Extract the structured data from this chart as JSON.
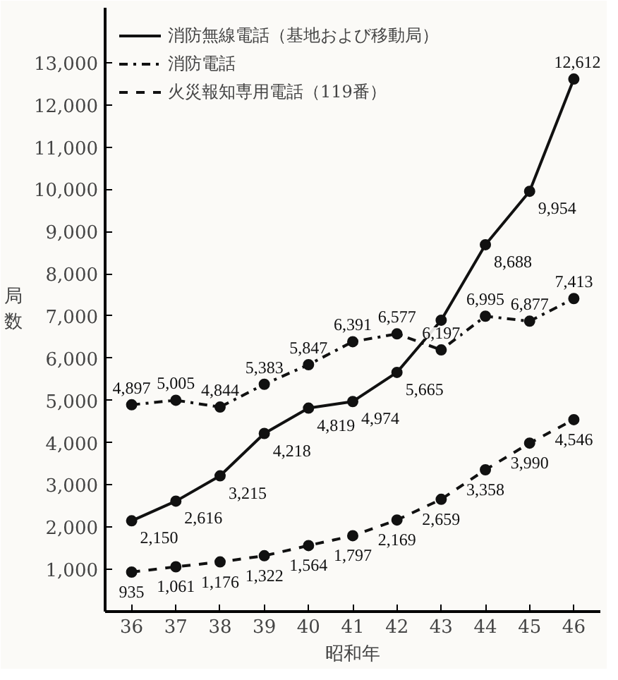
{
  "chart_data": {
    "type": "line",
    "xlabel": "昭和年",
    "ylabel": "局数",
    "categories": [
      "36",
      "37",
      "38",
      "39",
      "40",
      "41",
      "42",
      "43",
      "44",
      "45",
      "46"
    ],
    "ylim": [
      0,
      14300
    ],
    "yticks": [
      {
        "value": 1000,
        "label": "1,000"
      },
      {
        "value": 2000,
        "label": "2,000"
      },
      {
        "value": 3000,
        "label": "3,000"
      },
      {
        "value": 4000,
        "label": "4,000"
      },
      {
        "value": 5000,
        "label": "5,000"
      },
      {
        "value": 6000,
        "label": "6,000"
      },
      {
        "value": 7000,
        "label": "7,000"
      },
      {
        "value": 8000,
        "label": "8,000"
      },
      {
        "value": 9000,
        "label": "9,000"
      },
      {
        "value": 10000,
        "label": "10,000"
      },
      {
        "value": 11000,
        "label": "11,000"
      },
      {
        "value": 12000,
        "label": "12,000"
      },
      {
        "value": 13000,
        "label": "13,000"
      }
    ],
    "marker": "circle",
    "legend": "top left",
    "grid": false,
    "series": [
      {
        "name": "消防無線電話（基地および移動局）",
        "color": "#111111",
        "line_style": "solid",
        "values": [
          2150,
          2616,
          3215,
          4218,
          4819,
          4974,
          5665,
          6900,
          8688,
          9954,
          12612
        ],
        "value_labels": [
          "2,150",
          "2,616",
          "3,215",
          "4,218",
          "4,819",
          "4,974",
          "5,665",
          null,
          "8,688",
          "9,954",
          "12,612"
        ]
      },
      {
        "name": "消防電話",
        "color": "#111111",
        "line_style": "dashdot",
        "values": [
          4897,
          5005,
          4844,
          5383,
          5847,
          6391,
          6577,
          6197,
          6995,
          6877,
          7413
        ],
        "value_labels": [
          "4,897",
          "5,005",
          "4,844",
          "5,383",
          "5,847",
          "6,391",
          "6,577",
          "6,197",
          "6,995",
          "6,877",
          "7,413"
        ]
      },
      {
        "name": "火災報知専用電話（119番）",
        "color": "#111111",
        "line_style": "dashed",
        "values": [
          935,
          1061,
          1176,
          1322,
          1564,
          1797,
          2169,
          2659,
          3358,
          3990,
          4546
        ],
        "value_labels": [
          "935",
          "1,061",
          "1,176",
          "1,322",
          "1,564",
          "1,797",
          "2,169",
          "2,659",
          "3,358",
          "3,990",
          "4,546"
        ]
      }
    ]
  }
}
